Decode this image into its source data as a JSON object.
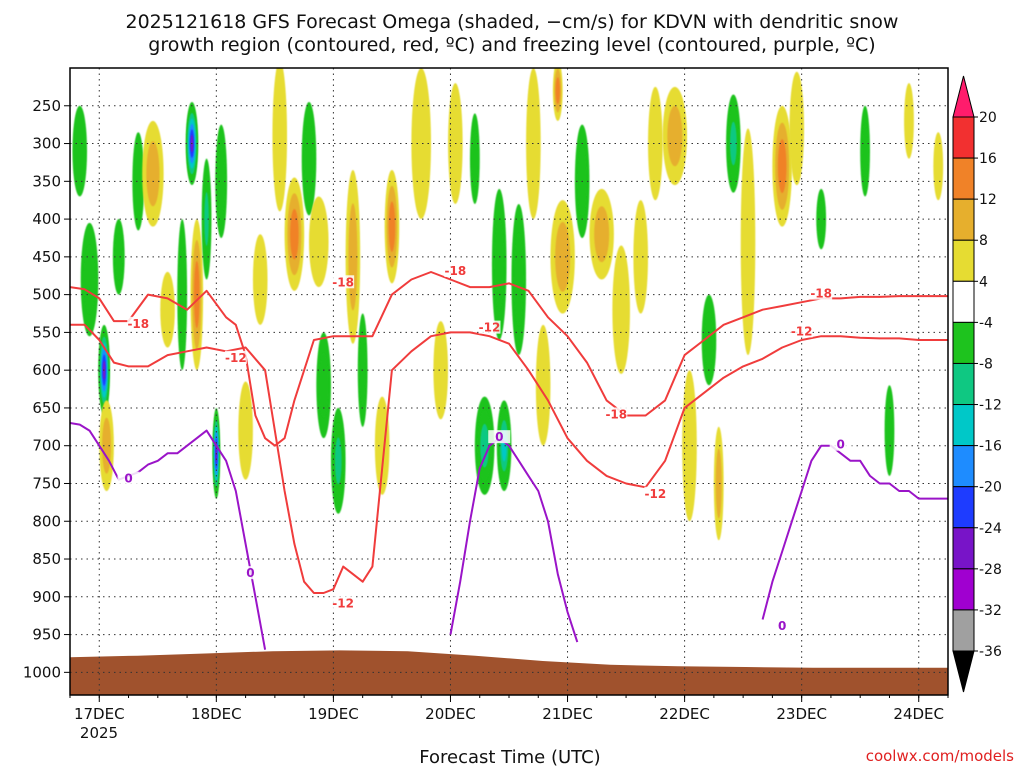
{
  "chart_data": {
    "type": "heatmap",
    "title_line1": "2025121618 GFS Forecast Omega (shaded, −cm/s) for KDVN with dendritic snow",
    "title_line2": "growth region (contoured, red, ºC) and freezing level (contoured, purple, ºC)",
    "xlabel": "Forecast Time (UTC)",
    "year_label": "2025",
    "credit": "coolwx.com/models",
    "x_ticks": [
      {
        "label": "17DEC",
        "hours": 12
      },
      {
        "label": "18DEC",
        "hours": 36
      },
      {
        "label": "19DEC",
        "hours": 60
      },
      {
        "label": "20DEC",
        "hours": 84
      },
      {
        "label": "21DEC",
        "hours": 108
      },
      {
        "label": "22DEC",
        "hours": 132
      },
      {
        "label": "23DEC",
        "hours": 156
      },
      {
        "label": "24DEC",
        "hours": 180
      }
    ],
    "xlim_hours": [
      6,
      186
    ],
    "y_ticks": [
      250,
      300,
      350,
      400,
      450,
      500,
      550,
      600,
      650,
      700,
      750,
      800,
      850,
      900,
      950,
      1000
    ],
    "y_unit": "hPa",
    "ylim": [
      200,
      1030
    ],
    "surface_pressure": [
      980,
      978,
      975,
      972,
      971,
      972,
      978,
      985,
      990,
      992,
      993,
      994,
      994,
      994
    ],
    "colorbar": {
      "levels": [
        20,
        16,
        12,
        8,
        4,
        -4,
        -8,
        -12,
        -16,
        -20,
        -24,
        -28,
        -32,
        -36
      ],
      "colors": [
        "#ff1c6c",
        "#f23030",
        "#f08228",
        "#e6af2d",
        "#e6dc32",
        "#ffffff",
        "#1ec31e",
        "#0fc882",
        "#00c8c8",
        "#1e8cff",
        "#1e3cff",
        "#7814c8",
        "#a000d0",
        "#a0a0a0",
        "#000000"
      ]
    },
    "shading_blobs": [
      {
        "t": 8,
        "p": 310,
        "tw": 1.5,
        "pw": 120,
        "v": -6
      },
      {
        "t": 10,
        "p": 480,
        "tw": 1.8,
        "pw": 150,
        "v": -8
      },
      {
        "t": 13,
        "p": 600,
        "tw": 1.2,
        "pw": 120,
        "v": -30
      },
      {
        "t": 13.5,
        "p": 700,
        "tw": 1.5,
        "pw": 120,
        "v": 10
      },
      {
        "t": 16,
        "p": 450,
        "tw": 1.2,
        "pw": 100,
        "v": -8
      },
      {
        "t": 20,
        "p": 350,
        "tw": 1.2,
        "pw": 130,
        "v": -6
      },
      {
        "t": 23,
        "p": 340,
        "tw": 2.2,
        "pw": 140,
        "v": 10
      },
      {
        "t": 26,
        "p": 520,
        "tw": 1.5,
        "pw": 100,
        "v": 6
      },
      {
        "t": 29,
        "p": 500,
        "tw": 1.0,
        "pw": 200,
        "v": -10
      },
      {
        "t": 31,
        "p": 300,
        "tw": 1.3,
        "pw": 110,
        "v": -30
      },
      {
        "t": 32,
        "p": 500,
        "tw": 1.3,
        "pw": 200,
        "v": 12
      },
      {
        "t": 34,
        "p": 400,
        "tw": 1.0,
        "pw": 160,
        "v": -14
      },
      {
        "t": 36,
        "p": 710,
        "tw": 0.8,
        "pw": 120,
        "v": -30
      },
      {
        "t": 37,
        "p": 350,
        "tw": 1.2,
        "pw": 150,
        "v": -10
      },
      {
        "t": 42,
        "p": 680,
        "tw": 1.5,
        "pw": 130,
        "v": 6
      },
      {
        "t": 45,
        "p": 480,
        "tw": 1.5,
        "pw": 120,
        "v": 6
      },
      {
        "t": 49,
        "p": 290,
        "tw": 1.5,
        "pw": 200,
        "v": 6
      },
      {
        "t": 52,
        "p": 420,
        "tw": 2.0,
        "pw": 150,
        "v": 14
      },
      {
        "t": 55,
        "p": 320,
        "tw": 1.5,
        "pw": 150,
        "v": -8
      },
      {
        "t": 57,
        "p": 430,
        "tw": 2.0,
        "pw": 120,
        "v": 6
      },
      {
        "t": 58,
        "p": 620,
        "tw": 1.5,
        "pw": 140,
        "v": -8
      },
      {
        "t": 61,
        "p": 720,
        "tw": 1.5,
        "pw": 140,
        "v": -12
      },
      {
        "t": 64,
        "p": 450,
        "tw": 1.5,
        "pw": 230,
        "v": 8
      },
      {
        "t": 66,
        "p": 600,
        "tw": 1.0,
        "pw": 150,
        "v": -8
      },
      {
        "t": 70,
        "p": 700,
        "tw": 1.5,
        "pw": 130,
        "v": 6
      },
      {
        "t": 72,
        "p": 410,
        "tw": 1.5,
        "pw": 150,
        "v": 12
      },
      {
        "t": 78,
        "p": 300,
        "tw": 2.0,
        "pw": 200,
        "v": 6
      },
      {
        "t": 82,
        "p": 600,
        "tw": 1.5,
        "pw": 130,
        "v": 6
      },
      {
        "t": 85,
        "p": 300,
        "tw": 1.5,
        "pw": 160,
        "v": 6
      },
      {
        "t": 89,
        "p": 320,
        "tw": 1.0,
        "pw": 120,
        "v": -8
      },
      {
        "t": 91,
        "p": 700,
        "tw": 2.0,
        "pw": 130,
        "v": -12
      },
      {
        "t": 94,
        "p": 460,
        "tw": 1.5,
        "pw": 200,
        "v": -10
      },
      {
        "t": 95,
        "p": 700,
        "tw": 1.5,
        "pw": 120,
        "v": -16
      },
      {
        "t": 98,
        "p": 480,
        "tw": 1.5,
        "pw": 200,
        "v": -8
      },
      {
        "t": 101,
        "p": 300,
        "tw": 1.5,
        "pw": 200,
        "v": 6
      },
      {
        "t": 103,
        "p": 620,
        "tw": 1.5,
        "pw": 160,
        "v": 6
      },
      {
        "t": 106,
        "p": 230,
        "tw": 1.0,
        "pw": 80,
        "v": 14
      },
      {
        "t": 107,
        "p": 450,
        "tw": 2.5,
        "pw": 150,
        "v": 10
      },
      {
        "t": 111,
        "p": 350,
        "tw": 1.5,
        "pw": 150,
        "v": -8
      },
      {
        "t": 115,
        "p": 420,
        "tw": 2.5,
        "pw": 120,
        "v": 8
      },
      {
        "t": 119,
        "p": 520,
        "tw": 1.8,
        "pw": 170,
        "v": 6
      },
      {
        "t": 123,
        "p": 450,
        "tw": 1.5,
        "pw": 150,
        "v": 6
      },
      {
        "t": 126,
        "p": 300,
        "tw": 1.5,
        "pw": 150,
        "v": 6
      },
      {
        "t": 130,
        "p": 290,
        "tw": 2.5,
        "pw": 130,
        "v": 8
      },
      {
        "t": 133,
        "p": 700,
        "tw": 1.5,
        "pw": 200,
        "v": 6
      },
      {
        "t": 137,
        "p": 560,
        "tw": 1.5,
        "pw": 120,
        "v": -8
      },
      {
        "t": 139,
        "p": 750,
        "tw": 1.0,
        "pw": 150,
        "v": 8
      },
      {
        "t": 142,
        "p": 300,
        "tw": 1.5,
        "pw": 130,
        "v": -12
      },
      {
        "t": 145,
        "p": 430,
        "tw": 1.5,
        "pw": 300,
        "v": 6
      },
      {
        "t": 152,
        "p": 330,
        "tw": 2.0,
        "pw": 160,
        "v": 12
      },
      {
        "t": 155,
        "p": 280,
        "tw": 1.5,
        "pw": 150,
        "v": 6
      },
      {
        "t": 160,
        "p": 400,
        "tw": 1.0,
        "pw": 80,
        "v": -8
      },
      {
        "t": 169,
        "p": 310,
        "tw": 1.0,
        "pw": 120,
        "v": -8
      },
      {
        "t": 174,
        "p": 680,
        "tw": 1.0,
        "pw": 120,
        "v": -8
      },
      {
        "t": 178,
        "p": 270,
        "tw": 1.0,
        "pw": 100,
        "v": 6
      },
      {
        "t": 184,
        "p": 330,
        "tw": 1.0,
        "pw": 90,
        "v": 6
      }
    ],
    "contours": [
      {
        "name": "dgz-minus18",
        "temp_label": "-18",
        "color": "#f03c3c",
        "t": [
          6,
          9,
          12,
          15,
          18,
          22,
          26,
          30,
          34,
          38,
          40,
          42,
          43,
          44,
          46,
          48,
          50,
          52,
          56,
          60,
          64,
          68,
          72,
          76,
          80,
          84,
          88,
          92,
          96,
          100,
          104,
          108,
          112,
          116,
          120,
          124,
          128,
          130,
          132,
          136,
          140,
          144,
          148,
          152,
          156,
          160,
          164,
          168,
          172,
          176,
          180,
          186
        ],
        "p": [
          490,
          493,
          505,
          535,
          535,
          500,
          505,
          520,
          495,
          530,
          540,
          580,
          620,
          660,
          690,
          700,
          690,
          640,
          560,
          555,
          555,
          555,
          500,
          480,
          470,
          480,
          490,
          490,
          485,
          495,
          530,
          555,
          590,
          640,
          660,
          660,
          640,
          610,
          580,
          560,
          540,
          530,
          520,
          515,
          510,
          505,
          505,
          503,
          503,
          502,
          502,
          502
        ],
        "label_t": [
          20,
          62,
          85,
          118,
          160
        ],
        "label_p": [
          540,
          485,
          470,
          660,
          500
        ]
      },
      {
        "name": "dgz-minus12",
        "temp_label": "-12",
        "color": "#f03c3c",
        "t": [
          6,
          9,
          12,
          15,
          18,
          22,
          26,
          30,
          34,
          38,
          42,
          46,
          50,
          52,
          54,
          56,
          58,
          60,
          62,
          64,
          66,
          68,
          72,
          76,
          80,
          84,
          88,
          92,
          96,
          100,
          104,
          108,
          112,
          116,
          120,
          124,
          128,
          132,
          136,
          140,
          144,
          148,
          152,
          156,
          160,
          164,
          168,
          172,
          176,
          180,
          186
        ],
        "p": [
          540,
          540,
          560,
          590,
          595,
          595,
          580,
          575,
          570,
          575,
          570,
          600,
          760,
          830,
          880,
          895,
          895,
          890,
          860,
          870,
          880,
          860,
          600,
          575,
          555,
          550,
          550,
          555,
          565,
          600,
          640,
          690,
          720,
          740,
          750,
          755,
          720,
          650,
          630,
          610,
          595,
          585,
          570,
          560,
          555,
          555,
          557,
          558,
          558,
          560,
          560
        ],
        "label_t": [
          40,
          62,
          92,
          126,
          156
        ],
        "label_p": [
          585,
          910,
          545,
          765,
          550
        ]
      },
      {
        "name": "freezing-level-0",
        "temp_label": "0",
        "color": "#9a14c8",
        "t": [
          6,
          8,
          10,
          12,
          14,
          16,
          18,
          20,
          22,
          24,
          26,
          28,
          30,
          32,
          34,
          36,
          38,
          40,
          42,
          44,
          46
        ],
        "p": [
          670,
          672,
          680,
          700,
          720,
          745,
          740,
          735,
          725,
          720,
          710,
          710,
          700,
          690,
          680,
          700,
          720,
          760,
          830,
          900,
          970
        ],
        "label_t": [
          18,
          43
        ],
        "label_p": [
          745,
          870
        ]
      },
      {
        "name": "freezing-level-0b",
        "temp_label": "0",
        "color": "#9a14c8",
        "t": [
          84,
          86,
          88,
          90,
          92,
          94,
          96,
          98,
          100,
          102,
          104,
          106,
          108,
          110
        ],
        "p": [
          950,
          880,
          800,
          730,
          700,
          690,
          700,
          720,
          740,
          760,
          800,
          870,
          920,
          960
        ],
        "label_t": [
          94
        ],
        "label_p": [
          690
        ]
      },
      {
        "name": "freezing-level-0c",
        "temp_label": "0",
        "color": "#9a14c8",
        "t": [
          148,
          150,
          152,
          154,
          156,
          158,
          160,
          162,
          164,
          166,
          168,
          170,
          172,
          174,
          176,
          178,
          180,
          182,
          184,
          186
        ],
        "p": [
          930,
          880,
          840,
          800,
          760,
          720,
          700,
          700,
          710,
          720,
          720,
          740,
          750,
          750,
          760,
          760,
          770,
          770,
          770,
          770
        ],
        "label_t": [
          164,
          152
        ],
        "label_p": [
          700,
          940
        ]
      }
    ]
  }
}
